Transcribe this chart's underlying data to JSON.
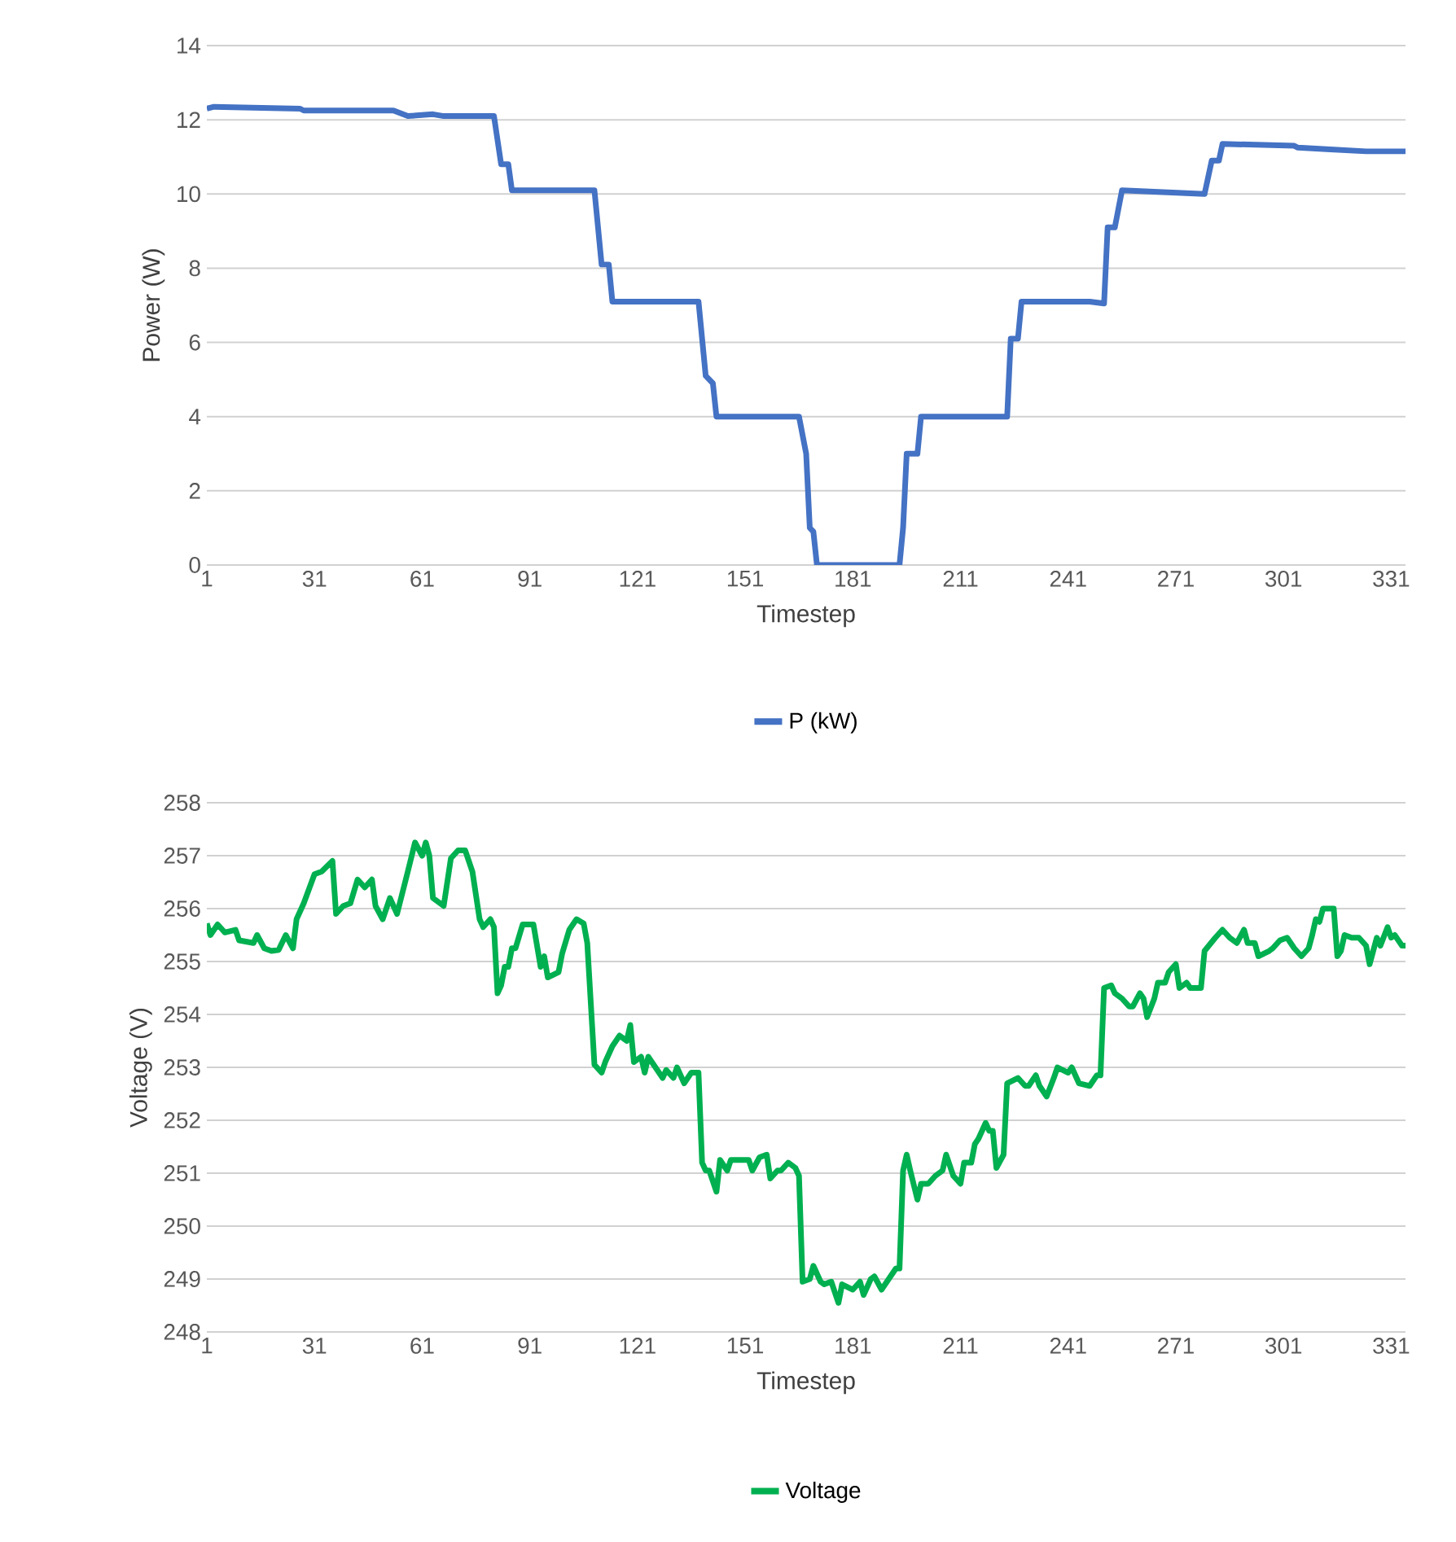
{
  "chart_data": [
    {
      "type": "line",
      "xlabel": "Timestep",
      "ylabel": "Power (W)",
      "xlim": [
        1,
        335
      ],
      "xticks": [
        1,
        31,
        61,
        91,
        121,
        151,
        181,
        211,
        241,
        271,
        301,
        331
      ],
      "ylim": [
        0,
        14
      ],
      "yticks": [
        0,
        2,
        4,
        6,
        8,
        10,
        12,
        14
      ],
      "grid": "y",
      "legend": "bottom",
      "series": [
        {
          "name": "P (kW)",
          "color": "#4472c4",
          "x": [
            1,
            3,
            27,
            28,
            53,
            57,
            64,
            67,
            81,
            83,
            85,
            86,
            109,
            111,
            113,
            114,
            138,
            140,
            142,
            143,
            166,
            168,
            169,
            170,
            171,
            194,
            195,
            196,
            199,
            200,
            224,
            225,
            227,
            228,
            247,
            251,
            252,
            254,
            256,
            279,
            281,
            283,
            284,
            304,
            305,
            314,
            324,
            335
          ],
          "values": [
            12.3,
            12.35,
            12.3,
            12.25,
            12.25,
            12.1,
            12.15,
            12.1,
            12.1,
            10.8,
            10.8,
            10.1,
            10.1,
            8.1,
            8.1,
            7.1,
            7.1,
            5.1,
            4.9,
            4.0,
            4.0,
            3.0,
            1.0,
            0.9,
            0,
            0,
            1.0,
            3.0,
            3.0,
            4.0,
            4.0,
            6.1,
            6.1,
            7.1,
            7.1,
            7.05,
            9.1,
            9.1,
            10.1,
            10.0,
            10.9,
            10.9,
            11.35,
            11.3,
            11.25,
            11.2,
            11.15,
            11.15
          ]
        }
      ]
    },
    {
      "type": "line",
      "xlabel": "Timestep",
      "ylabel": "Voltage (V)",
      "xlim": [
        1,
        335
      ],
      "xticks": [
        1,
        31,
        61,
        91,
        121,
        151,
        181,
        211,
        241,
        271,
        301,
        331
      ],
      "ylim": [
        248,
        258
      ],
      "yticks": [
        248,
        249,
        250,
        251,
        252,
        253,
        254,
        255,
        256,
        257,
        258
      ],
      "grid": "y",
      "legend": "bottom",
      "series": [
        {
          "name": "Voltage",
          "color": "#00b050",
          "x": [
            1,
            2,
            4,
            6,
            9,
            10,
            14,
            15,
            17,
            19,
            21,
            23,
            25,
            26,
            28,
            31,
            33,
            36,
            37,
            39,
            41,
            43,
            45,
            47,
            48,
            50,
            52,
            54,
            57,
            59,
            61,
            62,
            63,
            64,
            67,
            69,
            71,
            73,
            75,
            77,
            78,
            80,
            81,
            82,
            83,
            84,
            85,
            86,
            87,
            89,
            92,
            94,
            95,
            96,
            99,
            100,
            102,
            104,
            106,
            107,
            109,
            111,
            112,
            114,
            116,
            118,
            119,
            120,
            122,
            123,
            124,
            126,
            128,
            129,
            131,
            132,
            134,
            136,
            138,
            139,
            140,
            141,
            143,
            144,
            146,
            147,
            150,
            152,
            153,
            155,
            157,
            158,
            160,
            161,
            163,
            165,
            166,
            167,
            169,
            170,
            172,
            173,
            175,
            177,
            178,
            181,
            183,
            184,
            186,
            187,
            189,
            191,
            193,
            194,
            195,
            196,
            197,
            199,
            200,
            202,
            204,
            206,
            207,
            209,
            211,
            212,
            214,
            215,
            216,
            218,
            219,
            220,
            221,
            223,
            224,
            227,
            229,
            230,
            232,
            233,
            235,
            237,
            238,
            241,
            242,
            244,
            247,
            249,
            250,
            251,
            253,
            254,
            256,
            258,
            259,
            261,
            262,
            263,
            265,
            266,
            268,
            269,
            271,
            272,
            274,
            275,
            278,
            279,
            282,
            284,
            286,
            288,
            290,
            291,
            293,
            294,
            297,
            298,
            300,
            302,
            304,
            306,
            308,
            309,
            310,
            311,
            312,
            315,
            316,
            317,
            318,
            320,
            322,
            324,
            325,
            327,
            328,
            330,
            331,
            332,
            334,
            335
          ],
          "values": [
            255.72,
            255.5,
            255.7,
            255.55,
            255.6,
            255.4,
            255.35,
            255.5,
            255.25,
            255.2,
            255.22,
            255.5,
            255.25,
            255.8,
            256.1,
            256.65,
            256.7,
            256.9,
            255.9,
            256.05,
            256.1,
            256.55,
            256.4,
            256.55,
            256.05,
            255.8,
            256.2,
            255.9,
            256.7,
            257.25,
            257.0,
            257.25,
            257.0,
            256.2,
            256.05,
            256.95,
            257.1,
            257.1,
            256.7,
            255.8,
            255.65,
            255.8,
            255.65,
            254.4,
            254.55,
            254.9,
            254.9,
            255.25,
            255.25,
            255.7,
            255.7,
            254.9,
            255.1,
            254.7,
            254.8,
            255.15,
            255.6,
            255.8,
            255.72,
            255.35,
            253.05,
            252.9,
            253.1,
            253.4,
            253.6,
            253.5,
            253.8,
            253.1,
            253.2,
            252.9,
            253.2,
            253.0,
            252.8,
            252.95,
            252.8,
            253.0,
            252.7,
            252.9,
            252.9,
            251.2,
            251.05,
            251.05,
            250.65,
            251.25,
            251.05,
            251.25,
            251.25,
            251.25,
            251.05,
            251.3,
            251.35,
            250.9,
            251.05,
            251.05,
            251.2,
            251.1,
            250.95,
            248.95,
            249.0,
            249.25,
            248.95,
            248.9,
            248.95,
            248.55,
            248.9,
            248.8,
            248.95,
            248.7,
            249.0,
            249.05,
            248.8,
            249.0,
            249.2,
            249.2,
            251.05,
            251.35,
            251.05,
            250.5,
            250.8,
            250.8,
            250.95,
            251.05,
            251.35,
            250.95,
            250.8,
            251.2,
            251.2,
            251.55,
            251.65,
            251.95,
            251.8,
            251.8,
            251.1,
            251.35,
            252.7,
            252.8,
            252.65,
            252.65,
            252.85,
            252.65,
            252.45,
            252.8,
            253.0,
            252.9,
            253.0,
            252.7,
            252.65,
            252.85,
            252.85,
            254.5,
            254.55,
            254.4,
            254.3,
            254.15,
            254.15,
            254.4,
            254.3,
            253.95,
            254.3,
            254.6,
            254.6,
            254.8,
            254.95,
            254.5,
            254.6,
            254.5,
            254.5,
            255.2,
            255.45,
            255.6,
            255.45,
            255.35,
            255.6,
            255.35,
            255.35,
            255.1,
            255.2,
            255.25,
            255.4,
            255.45,
            255.25,
            255.1,
            255.25,
            255.5,
            255.8,
            255.75,
            256.0,
            256.0,
            255.1,
            255.2,
            255.5,
            255.45,
            255.45,
            255.3,
            254.95,
            255.45,
            255.3,
            255.65,
            255.45,
            255.5,
            255.3,
            255.3
          ]
        }
      ]
    }
  ]
}
